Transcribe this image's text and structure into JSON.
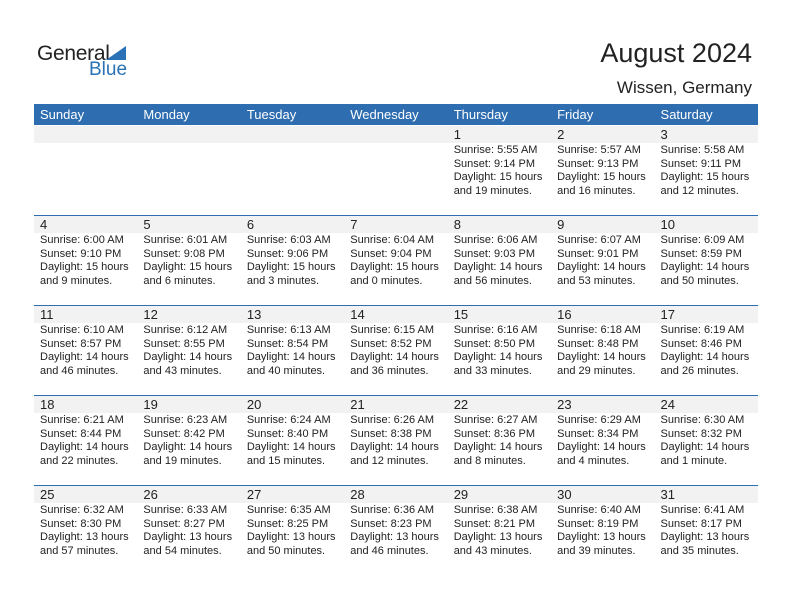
{
  "logo": {
    "general": "General",
    "blue": "Blue"
  },
  "title": "August 2024",
  "location": "Wissen, Germany",
  "days": [
    "Sunday",
    "Monday",
    "Tuesday",
    "Wednesday",
    "Thursday",
    "Friday",
    "Saturday"
  ],
  "weeks": [
    [
      null,
      null,
      null,
      null,
      {
        "d": "1",
        "rise": "Sunrise: 5:55 AM",
        "set": "Sunset: 9:14 PM",
        "dl1": "Daylight: 15 hours",
        "dl2": "and 19 minutes."
      },
      {
        "d": "2",
        "rise": "Sunrise: 5:57 AM",
        "set": "Sunset: 9:13 PM",
        "dl1": "Daylight: 15 hours",
        "dl2": "and 16 minutes."
      },
      {
        "d": "3",
        "rise": "Sunrise: 5:58 AM",
        "set": "Sunset: 9:11 PM",
        "dl1": "Daylight: 15 hours",
        "dl2": "and 12 minutes."
      }
    ],
    [
      {
        "d": "4",
        "rise": "Sunrise: 6:00 AM",
        "set": "Sunset: 9:10 PM",
        "dl1": "Daylight: 15 hours",
        "dl2": "and 9 minutes."
      },
      {
        "d": "5",
        "rise": "Sunrise: 6:01 AM",
        "set": "Sunset: 9:08 PM",
        "dl1": "Daylight: 15 hours",
        "dl2": "and 6 minutes."
      },
      {
        "d": "6",
        "rise": "Sunrise: 6:03 AM",
        "set": "Sunset: 9:06 PM",
        "dl1": "Daylight: 15 hours",
        "dl2": "and 3 minutes."
      },
      {
        "d": "7",
        "rise": "Sunrise: 6:04 AM",
        "set": "Sunset: 9:04 PM",
        "dl1": "Daylight: 15 hours",
        "dl2": "and 0 minutes."
      },
      {
        "d": "8",
        "rise": "Sunrise: 6:06 AM",
        "set": "Sunset: 9:03 PM",
        "dl1": "Daylight: 14 hours",
        "dl2": "and 56 minutes."
      },
      {
        "d": "9",
        "rise": "Sunrise: 6:07 AM",
        "set": "Sunset: 9:01 PM",
        "dl1": "Daylight: 14 hours",
        "dl2": "and 53 minutes."
      },
      {
        "d": "10",
        "rise": "Sunrise: 6:09 AM",
        "set": "Sunset: 8:59 PM",
        "dl1": "Daylight: 14 hours",
        "dl2": "and 50 minutes."
      }
    ],
    [
      {
        "d": "11",
        "rise": "Sunrise: 6:10 AM",
        "set": "Sunset: 8:57 PM",
        "dl1": "Daylight: 14 hours",
        "dl2": "and 46 minutes."
      },
      {
        "d": "12",
        "rise": "Sunrise: 6:12 AM",
        "set": "Sunset: 8:55 PM",
        "dl1": "Daylight: 14 hours",
        "dl2": "and 43 minutes."
      },
      {
        "d": "13",
        "rise": "Sunrise: 6:13 AM",
        "set": "Sunset: 8:54 PM",
        "dl1": "Daylight: 14 hours",
        "dl2": "and 40 minutes."
      },
      {
        "d": "14",
        "rise": "Sunrise: 6:15 AM",
        "set": "Sunset: 8:52 PM",
        "dl1": "Daylight: 14 hours",
        "dl2": "and 36 minutes."
      },
      {
        "d": "15",
        "rise": "Sunrise: 6:16 AM",
        "set": "Sunset: 8:50 PM",
        "dl1": "Daylight: 14 hours",
        "dl2": "and 33 minutes."
      },
      {
        "d": "16",
        "rise": "Sunrise: 6:18 AM",
        "set": "Sunset: 8:48 PM",
        "dl1": "Daylight: 14 hours",
        "dl2": "and 29 minutes."
      },
      {
        "d": "17",
        "rise": "Sunrise: 6:19 AM",
        "set": "Sunset: 8:46 PM",
        "dl1": "Daylight: 14 hours",
        "dl2": "and 26 minutes."
      }
    ],
    [
      {
        "d": "18",
        "rise": "Sunrise: 6:21 AM",
        "set": "Sunset: 8:44 PM",
        "dl1": "Daylight: 14 hours",
        "dl2": "and 22 minutes."
      },
      {
        "d": "19",
        "rise": "Sunrise: 6:23 AM",
        "set": "Sunset: 8:42 PM",
        "dl1": "Daylight: 14 hours",
        "dl2": "and 19 minutes."
      },
      {
        "d": "20",
        "rise": "Sunrise: 6:24 AM",
        "set": "Sunset: 8:40 PM",
        "dl1": "Daylight: 14 hours",
        "dl2": "and 15 minutes."
      },
      {
        "d": "21",
        "rise": "Sunrise: 6:26 AM",
        "set": "Sunset: 8:38 PM",
        "dl1": "Daylight: 14 hours",
        "dl2": "and 12 minutes."
      },
      {
        "d": "22",
        "rise": "Sunrise: 6:27 AM",
        "set": "Sunset: 8:36 PM",
        "dl1": "Daylight: 14 hours",
        "dl2": "and 8 minutes."
      },
      {
        "d": "23",
        "rise": "Sunrise: 6:29 AM",
        "set": "Sunset: 8:34 PM",
        "dl1": "Daylight: 14 hours",
        "dl2": "and 4 minutes."
      },
      {
        "d": "24",
        "rise": "Sunrise: 6:30 AM",
        "set": "Sunset: 8:32 PM",
        "dl1": "Daylight: 14 hours",
        "dl2": "and 1 minute."
      }
    ],
    [
      {
        "d": "25",
        "rise": "Sunrise: 6:32 AM",
        "set": "Sunset: 8:30 PM",
        "dl1": "Daylight: 13 hours",
        "dl2": "and 57 minutes."
      },
      {
        "d": "26",
        "rise": "Sunrise: 6:33 AM",
        "set": "Sunset: 8:27 PM",
        "dl1": "Daylight: 13 hours",
        "dl2": "and 54 minutes."
      },
      {
        "d": "27",
        "rise": "Sunrise: 6:35 AM",
        "set": "Sunset: 8:25 PM",
        "dl1": "Daylight: 13 hours",
        "dl2": "and 50 minutes."
      },
      {
        "d": "28",
        "rise": "Sunrise: 6:36 AM",
        "set": "Sunset: 8:23 PM",
        "dl1": "Daylight: 13 hours",
        "dl2": "and 46 minutes."
      },
      {
        "d": "29",
        "rise": "Sunrise: 6:38 AM",
        "set": "Sunset: 8:21 PM",
        "dl1": "Daylight: 13 hours",
        "dl2": "and 43 minutes."
      },
      {
        "d": "30",
        "rise": "Sunrise: 6:40 AM",
        "set": "Sunset: 8:19 PM",
        "dl1": "Daylight: 13 hours",
        "dl2": "and 39 minutes."
      },
      {
        "d": "31",
        "rise": "Sunrise: 6:41 AM",
        "set": "Sunset: 8:17 PM",
        "dl1": "Daylight: 13 hours",
        "dl2": "and 35 minutes."
      }
    ]
  ]
}
